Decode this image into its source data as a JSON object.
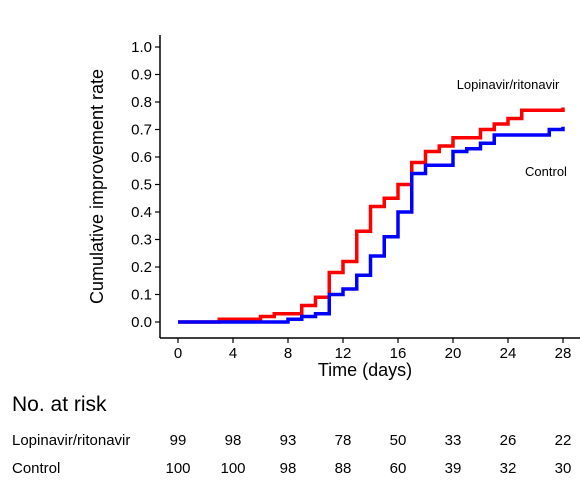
{
  "chart_data": {
    "type": "line",
    "subtype": "step",
    "xlabel": "Time (days)",
    "ylabel": "Cumulative improvement rate",
    "xlim": [
      0,
      28
    ],
    "ylim": [
      0,
      1.0
    ],
    "xticks": [
      "0",
      "4",
      "8",
      "12",
      "16",
      "20",
      "24",
      "28"
    ],
    "yticks": [
      "0.0",
      "0.1",
      "0.2",
      "0.3",
      "0.4",
      "0.5",
      "0.6",
      "0.7",
      "0.8",
      "0.9",
      "1.0"
    ],
    "grid": false,
    "series": [
      {
        "name": "Lopinavir/ritonavir",
        "color": "#ff0000",
        "x": [
          0,
          3,
          6,
          7,
          9,
          10,
          11,
          12,
          13,
          14,
          15,
          16,
          17,
          18,
          19,
          20,
          22,
          23,
          24,
          25,
          28
        ],
        "y": [
          0,
          0.01,
          0.02,
          0.03,
          0.06,
          0.09,
          0.18,
          0.22,
          0.33,
          0.42,
          0.45,
          0.5,
          0.58,
          0.62,
          0.64,
          0.67,
          0.7,
          0.72,
          0.74,
          0.77,
          0.78
        ]
      },
      {
        "name": "Control",
        "color": "#0000ff",
        "x": [
          0,
          8,
          9,
          10,
          11,
          12,
          13,
          14,
          15,
          16,
          17,
          18,
          20,
          21,
          22,
          23,
          27,
          28
        ],
        "y": [
          0,
          0.01,
          0.02,
          0.03,
          0.1,
          0.12,
          0.17,
          0.24,
          0.31,
          0.4,
          0.54,
          0.57,
          0.62,
          0.63,
          0.65,
          0.68,
          0.7,
          0.71
        ]
      }
    ]
  },
  "risk_table": {
    "title": "No. at risk",
    "times": [
      0,
      4,
      8,
      12,
      16,
      20,
      24,
      28
    ],
    "rows": [
      {
        "name": "Lopinavir/ritonavir",
        "values": [
          "99",
          "98",
          "93",
          "78",
          "50",
          "33",
          "26",
          "22"
        ]
      },
      {
        "name": "Control",
        "values": [
          "100",
          "100",
          "98",
          "88",
          "60",
          "39",
          "32",
          "30"
        ]
      }
    ]
  }
}
